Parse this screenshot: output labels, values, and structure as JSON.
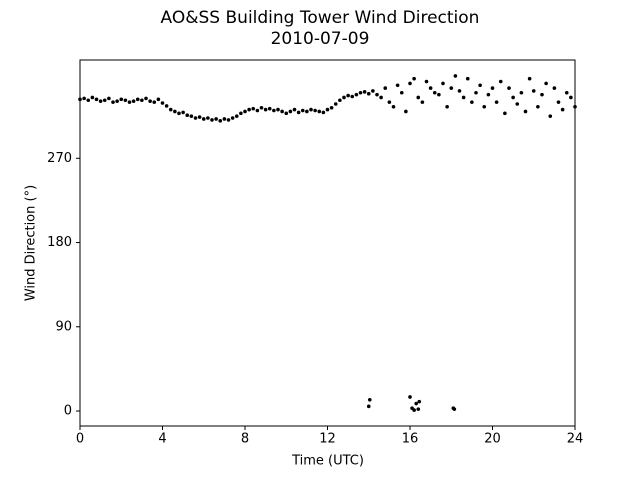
{
  "chart_data": {
    "type": "scatter",
    "title": "AO&SS Building Tower Wind Direction",
    "subtitle": "2010-07-09",
    "x_label": "Time (UTC)",
    "y_label": "Wind Direction (°)",
    "xlim": [
      0,
      24
    ],
    "ylim": [
      -16,
      375
    ],
    "xticks": [
      0,
      4,
      8,
      12,
      16,
      20,
      24
    ],
    "yticks": [
      0,
      90,
      180,
      270
    ],
    "color": "#000000",
    "x": [
      0,
      0.2,
      0.4,
      0.6,
      0.8,
      1,
      1.2,
      1.4,
      1.6,
      1.8,
      2,
      2.2,
      2.4,
      2.6,
      2.8,
      3,
      3.2,
      3.4,
      3.6,
      3.8,
      4,
      4.2,
      4.4,
      4.6,
      4.8,
      5,
      5.2,
      5.4,
      5.6,
      5.8,
      6,
      6.2,
      6.4,
      6.6,
      6.8,
      7,
      7.2,
      7.4,
      7.6,
      7.8,
      8,
      8.2,
      8.4,
      8.6,
      8.8,
      9,
      9.2,
      9.4,
      9.6,
      9.8,
      10,
      10.2,
      10.4,
      10.6,
      10.8,
      11,
      11.2,
      11.4,
      11.6,
      11.8,
      12,
      12.2,
      12.4,
      12.6,
      12.8,
      13,
      13.2,
      13.4,
      13.6,
      13.8,
      14,
      14.2,
      14.4,
      14.6,
      14.8,
      15,
      15.2,
      15.4,
      15.6,
      15.8,
      16,
      16.2,
      16.4,
      16.6,
      16.8,
      17,
      17.2,
      17.4,
      17.6,
      17.8,
      18,
      18.2,
      18.4,
      18.6,
      18.8,
      19,
      19.2,
      19.4,
      19.6,
      19.8,
      20,
      20.2,
      20.4,
      20.6,
      20.8,
      21,
      21.2,
      21.4,
      21.6,
      21.8,
      22,
      22.2,
      22.4,
      22.6,
      22.8,
      23,
      23.2,
      23.4,
      23.6,
      23.8,
      24,
      14,
      14.05,
      16,
      16.1,
      16.2,
      16.3,
      16.4,
      16.45,
      18.1,
      18.15
    ],
    "values": [
      333,
      334,
      332,
      335,
      333,
      331,
      332,
      334,
      330,
      331,
      333,
      332,
      330,
      331,
      333,
      332,
      334,
      331,
      330,
      333,
      329,
      326,
      322,
      320,
      318,
      319,
      316,
      315,
      313,
      314,
      312,
      313,
      311,
      312,
      310,
      312,
      311,
      313,
      315,
      318,
      320,
      322,
      323,
      321,
      324,
      322,
      323,
      321,
      322,
      320,
      318,
      320,
      322,
      319,
      321,
      320,
      322,
      321,
      320,
      319,
      322,
      324,
      328,
      332,
      335,
      337,
      336,
      338,
      340,
      341,
      339,
      342,
      338,
      335,
      345,
      330,
      325,
      348,
      340,
      320,
      350,
      355,
      335,
      330,
      352,
      345,
      340,
      338,
      350,
      325,
      345,
      358,
      342,
      335,
      355,
      330,
      340,
      348,
      325,
      338,
      345,
      330,
      352,
      318,
      345,
      335,
      328,
      340,
      320,
      355,
      342,
      325,
      338,
      350,
      315,
      345,
      330,
      322,
      340,
      335,
      325,
      5,
      12,
      15,
      3,
      1,
      8,
      2,
      10,
      3,
      2
    ]
  }
}
